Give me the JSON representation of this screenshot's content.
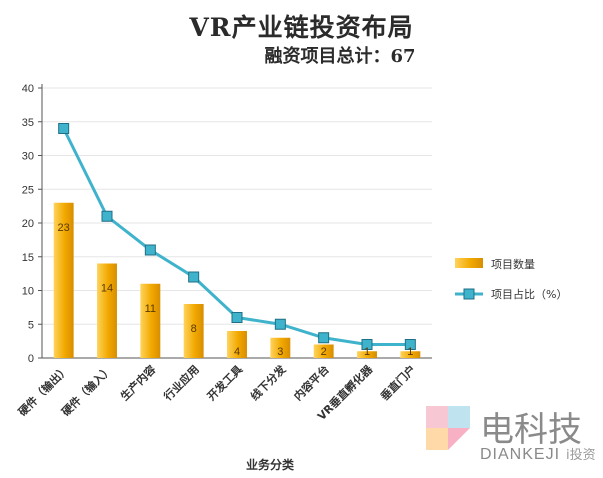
{
  "title": "VR产业链投资布局",
  "subtitle": "融资项目总计：67",
  "chart_data": {
    "type": "bar",
    "categories": [
      "硬件（输出）",
      "硬件（输入）",
      "生产内容",
      "行业应用",
      "开发工具",
      "线下分发",
      "内容平台",
      "VR垂直孵化器",
      "垂直门户"
    ],
    "series": [
      {
        "name": "项目数量",
        "type": "bar",
        "values": [
          23,
          14,
          11,
          8,
          4,
          3,
          2,
          1,
          1
        ],
        "data_labels": [
          "23",
          "14",
          "11",
          "8",
          "4",
          "3",
          "2",
          "1",
          "1"
        ]
      },
      {
        "name": "项目占比（%）",
        "type": "line",
        "values": [
          34,
          21,
          16,
          12,
          6,
          5,
          3,
          2,
          2
        ]
      }
    ],
    "xlabel": "业务分类",
    "ylabel": "",
    "ylim": [
      0,
      40
    ],
    "yticks": [
      "0",
      "5",
      "10",
      "15",
      "20",
      "25",
      "30",
      "35",
      "40"
    ],
    "grid": true,
    "legend_position": "right",
    "colors": {
      "bar": "#f2a900",
      "bar_light": "#ffd35c",
      "line": "#3fb3cc",
      "marker_edge": "#1f6f86",
      "axis": "#555555"
    }
  },
  "watermark": {
    "cn": "电科技",
    "en": "DIANKEJI",
    "tag": "i投资"
  }
}
